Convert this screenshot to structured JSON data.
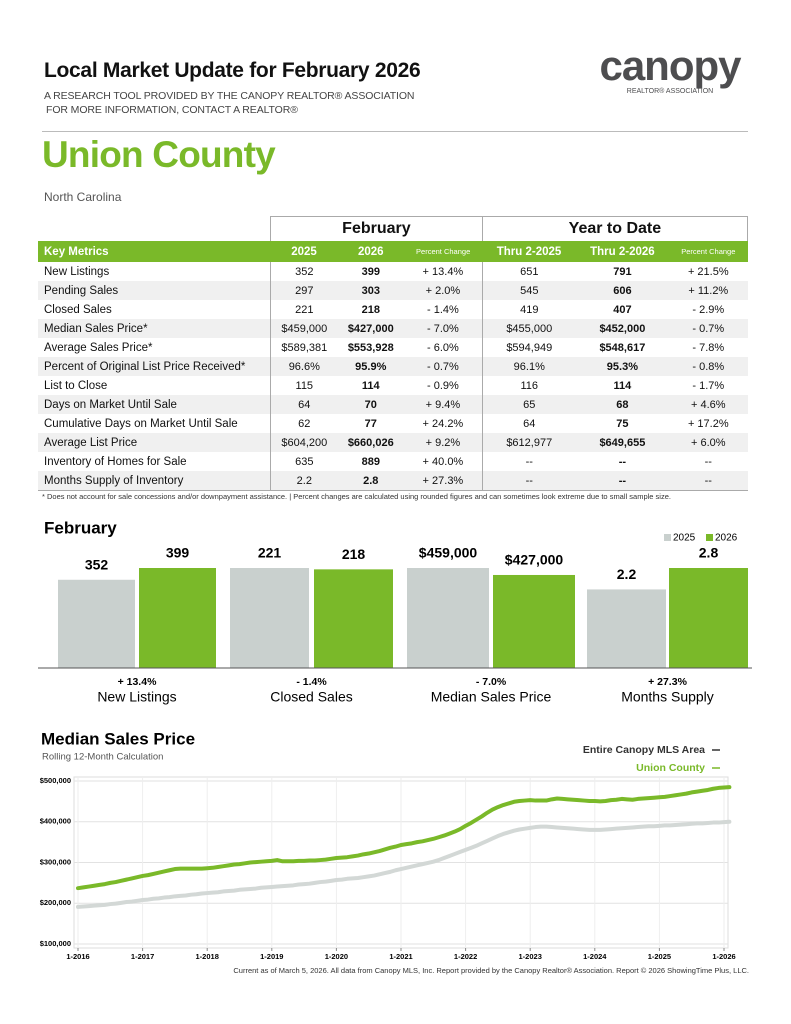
{
  "header": {
    "title": "Local Market Update for February 2026",
    "lines": [
      "A RESEARCH TOOL PROVIDED BY THE CANOPY REALTOR® ASSOCIATION",
      "FOR MORE INFORMATION, CONTACT A REALTOR®"
    ],
    "logo": "canopy",
    "logo_tagline": "REALTOR® ASSOCIATION",
    "area": "Union County",
    "state": "North Carolina"
  },
  "table": {
    "groups": [
      "February",
      "Year to Date"
    ],
    "header": [
      "Key Metrics",
      "2025",
      "2026",
      "Percent Change",
      "Thru 2-2025",
      "Thru 2-2026",
      "Percent Change"
    ],
    "rows": [
      [
        "New Listings",
        "352",
        "399",
        "+ 13.4%",
        "651",
        "791",
        "+ 21.5%"
      ],
      [
        "Pending Sales",
        "297",
        "303",
        "+ 2.0%",
        "545",
        "606",
        "+ 11.2%"
      ],
      [
        "Closed Sales",
        "221",
        "218",
        "- 1.4%",
        "419",
        "407",
        "- 2.9%"
      ],
      [
        "Median Sales Price*",
        "$459,000",
        "$427,000",
        "- 7.0%",
        "$455,000",
        "$452,000",
        "- 0.7%"
      ],
      [
        "Average Sales Price*",
        "$589,381",
        "$553,928",
        "- 6.0%",
        "$594,949",
        "$548,617",
        "- 7.8%"
      ],
      [
        "Percent of Original List Price Received*",
        "96.6%",
        "95.9%",
        "- 0.7%",
        "96.1%",
        "95.3%",
        "- 0.8%"
      ],
      [
        "List to Close",
        "115",
        "114",
        "- 0.9%",
        "116",
        "114",
        "- 1.7%"
      ],
      [
        "Days on Market Until Sale",
        "64",
        "70",
        "+ 9.4%",
        "65",
        "68",
        "+ 4.6%"
      ],
      [
        "Cumulative Days on Market Until Sale",
        "62",
        "77",
        "+ 24.2%",
        "64",
        "75",
        "+ 17.2%"
      ],
      [
        "Average List Price",
        "$604,200",
        "$660,026",
        "+ 9.2%",
        "$612,977",
        "$649,655",
        "+ 6.0%"
      ],
      [
        "Inventory of Homes for Sale",
        "635",
        "889",
        "+ 40.0%",
        "--",
        "--",
        "--"
      ],
      [
        "Months Supply of Inventory",
        "2.2",
        "2.8",
        "+ 27.3%",
        "--",
        "--",
        "--"
      ]
    ]
  },
  "footnote": "* Does not account for sale concessions and/or downpayment assistance.  |  Percent changes are calculated using rounded figures and can sometimes look extreme due to small sample size.",
  "footer": "Current as of March 5, 2026. All data from Canopy MLS, Inc. Report provided by the Canopy Realtor® Association. Report © 2026 ShowingTime Plus, LLC.",
  "chart_data": [
    {
      "type": "bar",
      "title": "February",
      "categories": [
        "New Listings",
        "Closed Sales",
        "Median Sales Price",
        "Months Supply"
      ],
      "annotations": [
        "+ 13.4%",
        "- 1.4%",
        "- 7.0%",
        "+ 27.3%"
      ],
      "legend": "top-right",
      "series": [
        {
          "name": "2025",
          "color": "#c9d0ce",
          "values": [
            352,
            221,
            459000,
            2.2
          ],
          "value_labels": [
            "352",
            "221",
            "$459,000",
            "2.2"
          ]
        },
        {
          "name": "2026",
          "color": "#7ab929",
          "values": [
            399,
            218,
            427000,
            2.8
          ],
          "value_labels": [
            "399",
            "218",
            "$427,000",
            "2.8"
          ]
        }
      ]
    },
    {
      "type": "line",
      "title": "Median Sales Price",
      "subtitle": "Rolling 12-Month Calculation",
      "legend": "top-right",
      "grid": true,
      "ylim": [
        100000,
        500000
      ],
      "yticks": [
        {
          "value": 100000,
          "label": "$100,000"
        },
        {
          "value": 200000,
          "label": "$200,000"
        },
        {
          "value": 300000,
          "label": "$300,000"
        },
        {
          "value": 400000,
          "label": "$400,000"
        },
        {
          "value": 500000,
          "label": "$500,000"
        }
      ],
      "x": [
        "1-2016",
        "2-2016",
        "3-2016",
        "4-2016",
        "5-2016",
        "6-2016",
        "7-2016",
        "8-2016",
        "9-2016",
        "10-2016",
        "11-2016",
        "12-2016",
        "1-2017",
        "2-2017",
        "3-2017",
        "4-2017",
        "5-2017",
        "6-2017",
        "7-2017",
        "8-2017",
        "9-2017",
        "10-2017",
        "11-2017",
        "12-2017",
        "1-2018",
        "2-2018",
        "3-2018",
        "4-2018",
        "5-2018",
        "6-2018",
        "7-2018",
        "8-2018",
        "9-2018",
        "10-2018",
        "11-2018",
        "12-2018",
        "1-2019",
        "2-2019",
        "3-2019",
        "4-2019",
        "5-2019",
        "6-2019",
        "7-2019",
        "8-2019",
        "9-2019",
        "10-2019",
        "11-2019",
        "12-2019",
        "1-2020",
        "2-2020",
        "3-2020",
        "4-2020",
        "5-2020",
        "6-2020",
        "7-2020",
        "8-2020",
        "9-2020",
        "10-2020",
        "11-2020",
        "12-2020",
        "1-2021",
        "2-2021",
        "3-2021",
        "4-2021",
        "5-2021",
        "6-2021",
        "7-2021",
        "8-2021",
        "9-2021",
        "10-2021",
        "11-2021",
        "12-2021",
        "1-2022",
        "2-2022",
        "3-2022",
        "4-2022",
        "5-2022",
        "6-2022",
        "7-2022",
        "8-2022",
        "9-2022",
        "10-2022",
        "11-2022",
        "12-2022",
        "1-2023",
        "2-2023",
        "3-2023",
        "4-2023",
        "5-2023",
        "6-2023",
        "7-2023",
        "8-2023",
        "9-2023",
        "10-2023",
        "11-2023",
        "12-2023",
        "1-2024",
        "2-2024",
        "3-2024",
        "4-2024",
        "5-2024",
        "6-2024",
        "7-2024",
        "8-2024",
        "9-2024",
        "10-2024",
        "11-2024",
        "12-2024",
        "1-2025",
        "2-2025",
        "3-2025",
        "4-2025",
        "5-2025",
        "6-2025",
        "7-2025",
        "8-2025",
        "9-2025",
        "10-2025",
        "11-2025",
        "12-2025",
        "1-2026",
        "2-2026"
      ],
      "series": [
        {
          "name": "Entire Canopy MLS Area",
          "color": "#d3d8d6",
          "legend_color": "#333333",
          "values": [
            191000,
            192000,
            193000,
            194000,
            195000,
            196000,
            198000,
            199000,
            201000,
            203000,
            204000,
            206000,
            208000,
            209000,
            211000,
            212000,
            214000,
            215000,
            217000,
            218000,
            219000,
            221000,
            222000,
            224000,
            225000,
            226000,
            227000,
            229000,
            230000,
            231000,
            233000,
            234000,
            235000,
            236000,
            238000,
            239000,
            240000,
            241000,
            242000,
            243000,
            244000,
            246000,
            247000,
            248000,
            250000,
            252000,
            253000,
            255000,
            257000,
            258000,
            260000,
            261000,
            262000,
            264000,
            266000,
            268000,
            271000,
            274000,
            277000,
            281000,
            284000,
            287000,
            290000,
            293000,
            296000,
            299000,
            302000,
            306000,
            311000,
            316000,
            321000,
            326000,
            331000,
            336000,
            341000,
            347000,
            353000,
            359000,
            365000,
            370000,
            374000,
            378000,
            381000,
            383000,
            385000,
            387000,
            388000,
            388000,
            387000,
            386000,
            385000,
            384000,
            383000,
            382000,
            381000,
            380000,
            380000,
            380000,
            381000,
            382000,
            383000,
            384000,
            385000,
            386000,
            387000,
            388000,
            389000,
            389000,
            390000,
            391000,
            391000,
            392000,
            393000,
            394000,
            395000,
            396000,
            396000,
            397000,
            398000,
            398000,
            399000,
            400000
          ]
        },
        {
          "name": "Union County",
          "color": "#7ab929",
          "legend_color": "#7ab929",
          "values": [
            237000,
            239000,
            241000,
            243000,
            245000,
            247000,
            250000,
            252000,
            255000,
            258000,
            261000,
            264000,
            267000,
            269000,
            272000,
            275000,
            278000,
            281000,
            284000,
            285000,
            285000,
            285000,
            285000,
            285000,
            286000,
            287000,
            289000,
            291000,
            293000,
            295000,
            296000,
            298000,
            300000,
            301000,
            302000,
            303000,
            304000,
            306000,
            303000,
            303000,
            303000,
            304000,
            304000,
            305000,
            305000,
            306000,
            307000,
            309000,
            311000,
            312000,
            313000,
            315000,
            317000,
            320000,
            322000,
            325000,
            328000,
            332000,
            336000,
            339000,
            343000,
            345000,
            347000,
            350000,
            352000,
            355000,
            358000,
            362000,
            366000,
            371000,
            376000,
            382000,
            390000,
            397000,
            405000,
            413000,
            422000,
            430000,
            436000,
            441000,
            445000,
            449000,
            451000,
            452000,
            453000,
            452000,
            452000,
            452000,
            455000,
            457000,
            456000,
            455000,
            454000,
            453000,
            452000,
            451000,
            451000,
            450000,
            451000,
            453000,
            454000,
            456000,
            455000,
            454000,
            456000,
            457000,
            458000,
            459000,
            460000,
            461000,
            463000,
            465000,
            467000,
            469000,
            472000,
            474000,
            476000,
            478000,
            481000,
            483000,
            484000,
            485000
          ]
        }
      ]
    }
  ]
}
